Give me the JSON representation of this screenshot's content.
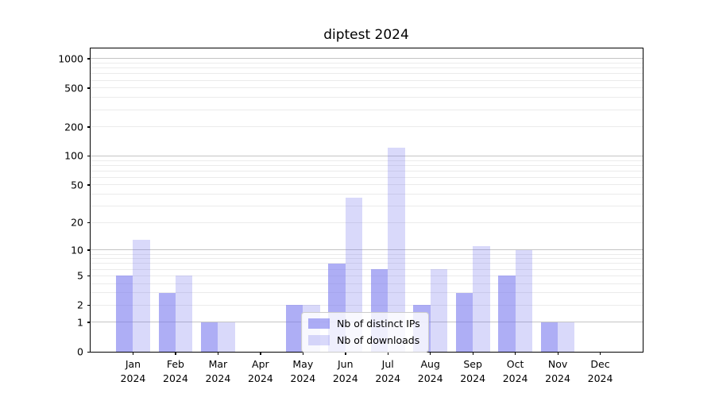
{
  "chart_data": {
    "type": "bar",
    "title": "diptest 2024",
    "categories": [
      "Jan",
      "Feb",
      "Mar",
      "Apr",
      "May",
      "Jun",
      "Jul",
      "Aug",
      "Sep",
      "Oct",
      "Nov",
      "Dec"
    ],
    "year_label": "2024",
    "series": [
      {
        "name": "Nb of distinct IPs",
        "color": "rgba(120,120,238,0.60)",
        "values": [
          5,
          3,
          1,
          0,
          2,
          7,
          6,
          2,
          3,
          5,
          1,
          0
        ]
      },
      {
        "name": "Nb of downloads",
        "color": "rgba(120,120,238,0.28)",
        "values": [
          13,
          5,
          1,
          0,
          2,
          37,
          123,
          6,
          11,
          10,
          1,
          0
        ]
      }
    ],
    "y_axis": {
      "scale": "log1p",
      "tick_values": [
        0,
        1,
        2,
        5,
        10,
        20,
        50,
        100,
        200,
        500,
        1000
      ],
      "major_gridlines": [
        1,
        10,
        100,
        1000
      ],
      "minor_gridlines": [
        2,
        3,
        4,
        5,
        6,
        7,
        8,
        9,
        20,
        30,
        40,
        50,
        60,
        70,
        80,
        90,
        200,
        300,
        400,
        500,
        600,
        700,
        800,
        900
      ],
      "ymax": 1290
    },
    "x_axis": {
      "label_line2": "2024"
    },
    "legend": {
      "position": "lower center"
    },
    "colors": {
      "major_grid": "#c4c4c4",
      "minor_grid": "#ebebeb",
      "axis": "#000000",
      "text": "#000000",
      "legend_border": "#cccccc",
      "legend_bg": "rgba(255,255,255,0.8)"
    }
  }
}
